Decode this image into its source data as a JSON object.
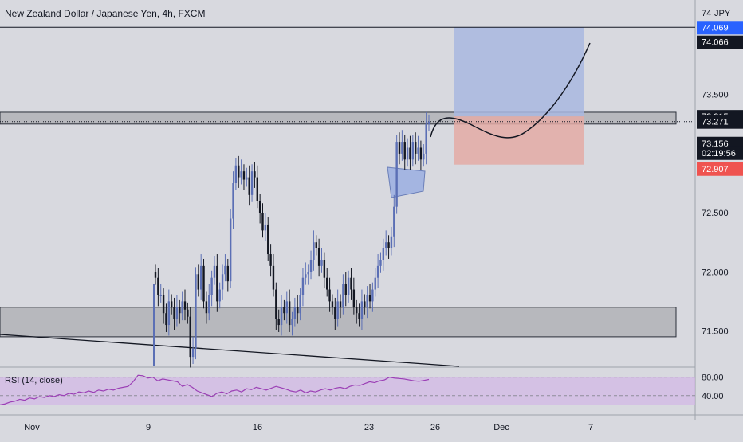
{
  "title": "New Zealand Dollar / Japanese Yen, 4h, FXCM",
  "rsi_label": "RSI (14, close)",
  "currency_label": "JPY",
  "colors": {
    "background": "#d8d9df",
    "bull_candle": "#5b6fb5",
    "bear_candle": "#131722",
    "zone_fill": "#b7b8bd",
    "target_fill": "#a9b7e0",
    "stop_fill": "#e4aaa6",
    "flag_fill": "#8fa6e3",
    "rsi_line": "#9b3fb5",
    "rsi_band": "#d3b7e6",
    "tag_blue": "#2962ff",
    "tag_red": "#ef5350",
    "tag_dark": "#131722"
  },
  "chart_data": {
    "type": "candlestick",
    "symbol": "NZDJPY",
    "timeframe": "4h",
    "ylim": [
      71.2,
      74.3
    ],
    "y_ticks": [
      "72.000",
      "72.500",
      "73.500",
      "71.500"
    ],
    "y_top_tick": "74",
    "x_ticks": [
      "Nov",
      "9",
      "16",
      "23",
      "26",
      "Dec",
      "7"
    ],
    "price_tags": [
      {
        "label": "74.069",
        "value": 74.069,
        "style": "blue"
      },
      {
        "label": "74.066",
        "value": 74.066,
        "style": "dark"
      },
      {
        "label": "73.315",
        "value": 73.315,
        "style": "dark"
      },
      {
        "label": "73.271",
        "value": 73.271,
        "style": "dark"
      },
      {
        "label": "73.156",
        "value": 73.156,
        "style": "dark"
      },
      {
        "label": "02:19:56",
        "value": 72.97,
        "style": "dark"
      },
      {
        "label": "72.907",
        "value": 72.907,
        "style": "red"
      }
    ],
    "horizontal_lines": [
      {
        "name": "target-line",
        "value": 74.069
      },
      {
        "name": "current-price-line",
        "value": 73.271,
        "dotted": true
      }
    ],
    "zones": [
      {
        "name": "resistance-zone",
        "low": 73.25,
        "high": 73.35
      },
      {
        "name": "support-zone",
        "low": 71.45,
        "high": 71.7
      }
    ],
    "position": {
      "entry": 73.315,
      "target": 74.069,
      "stop": 72.907
    },
    "closes": [
      71.95,
      71.8,
      71.8,
      71.65,
      71.55,
      71.75,
      71.7,
      71.6,
      71.7,
      71.65,
      71.75,
      71.68,
      71.62,
      71.28,
      71.35,
      71.98,
      71.85,
      72.05,
      71.75,
      71.65,
      71.8,
      71.95,
      72.05,
      71.75,
      71.85,
      71.98,
      72.05,
      71.92,
      72.45,
      72.75,
      72.9,
      72.8,
      72.85,
      72.78,
      72.8,
      72.65,
      72.85,
      72.8,
      72.6,
      72.5,
      72.35,
      72.4,
      72.15,
      72.05,
      71.85,
      71.6,
      71.55,
      71.7,
      71.65,
      71.75,
      71.55,
      71.6,
      71.7,
      71.65,
      71.8,
      71.95,
      71.98,
      72.0,
      72.1,
      72.25,
      72.2,
      72.05,
      72.1,
      71.95,
      71.85,
      71.75,
      71.7,
      71.6,
      71.75,
      71.7,
      71.9,
      71.8,
      71.95,
      71.85,
      71.7,
      71.65,
      71.6,
      71.75,
      71.7,
      71.8,
      71.75,
      71.85,
      71.95,
      72.05,
      72.1,
      72.2,
      72.25,
      72.2,
      72.3,
      72.55,
      73.1,
      73.0,
      73.1,
      72.95,
      73.05,
      72.95,
      73.1,
      73.0,
      73.05,
      72.95,
      73.0,
      73.25,
      73.27
    ],
    "rsi": {
      "ylim": [
        0,
        100
      ],
      "levels": [
        80,
        40
      ],
      "level_labels": [
        "80.00",
        "40.00"
      ],
      "values": [
        20,
        22,
        26,
        28,
        32,
        30,
        35,
        33,
        38,
        36,
        40,
        38,
        42,
        40,
        45,
        43,
        48,
        46,
        50,
        47,
        52,
        50,
        54,
        52,
        56,
        58,
        60,
        70,
        84,
        83,
        78,
        80,
        72,
        76,
        74,
        72,
        70,
        60,
        64,
        58,
        50,
        46,
        42,
        38,
        45,
        48,
        44,
        50,
        52,
        48,
        55,
        53,
        58,
        55,
        52,
        56,
        60,
        57,
        54,
        50,
        48,
        52,
        46,
        50,
        48,
        52,
        55,
        52,
        56,
        58,
        55,
        60,
        63,
        62,
        66,
        70,
        68,
        72,
        74,
        80,
        78,
        77,
        76,
        74,
        72,
        71,
        73,
        75
      ]
    }
  }
}
